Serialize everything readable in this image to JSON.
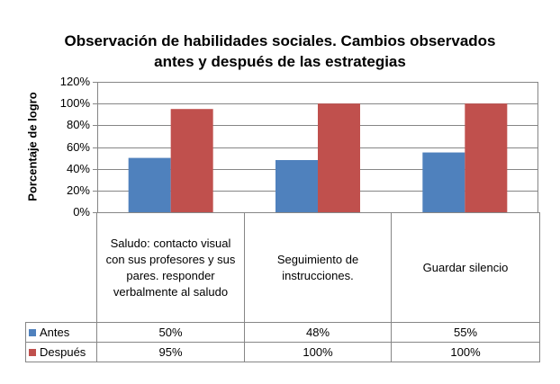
{
  "chart_data": {
    "type": "bar",
    "title_lines": [
      "Observación de habilidades sociales. Cambios observados",
      "antes y después de las estrategias"
    ],
    "ylabel": "Porcentaje de logro",
    "ylim": [
      0,
      120
    ],
    "yticks": [
      "0%",
      "20%",
      "40%",
      "60%",
      "80%",
      "100%",
      "120%"
    ],
    "grid": true,
    "legend": "data-table",
    "categories": [
      "Saludo: contacto visual con sus profesores y sus pares. responder verbalmente al saludo",
      "Seguimiento de instrucciones.",
      "Guardar silencio"
    ],
    "series": [
      {
        "name": "Antes",
        "color": "#4F81BD",
        "values": [
          50,
          48,
          55
        ],
        "labels": [
          "50%",
          "48%",
          "55%"
        ]
      },
      {
        "name": "Después",
        "color": "#C0504D",
        "values": [
          95,
          100,
          100
        ],
        "labels": [
          "95%",
          "100%",
          "100%"
        ]
      }
    ]
  }
}
